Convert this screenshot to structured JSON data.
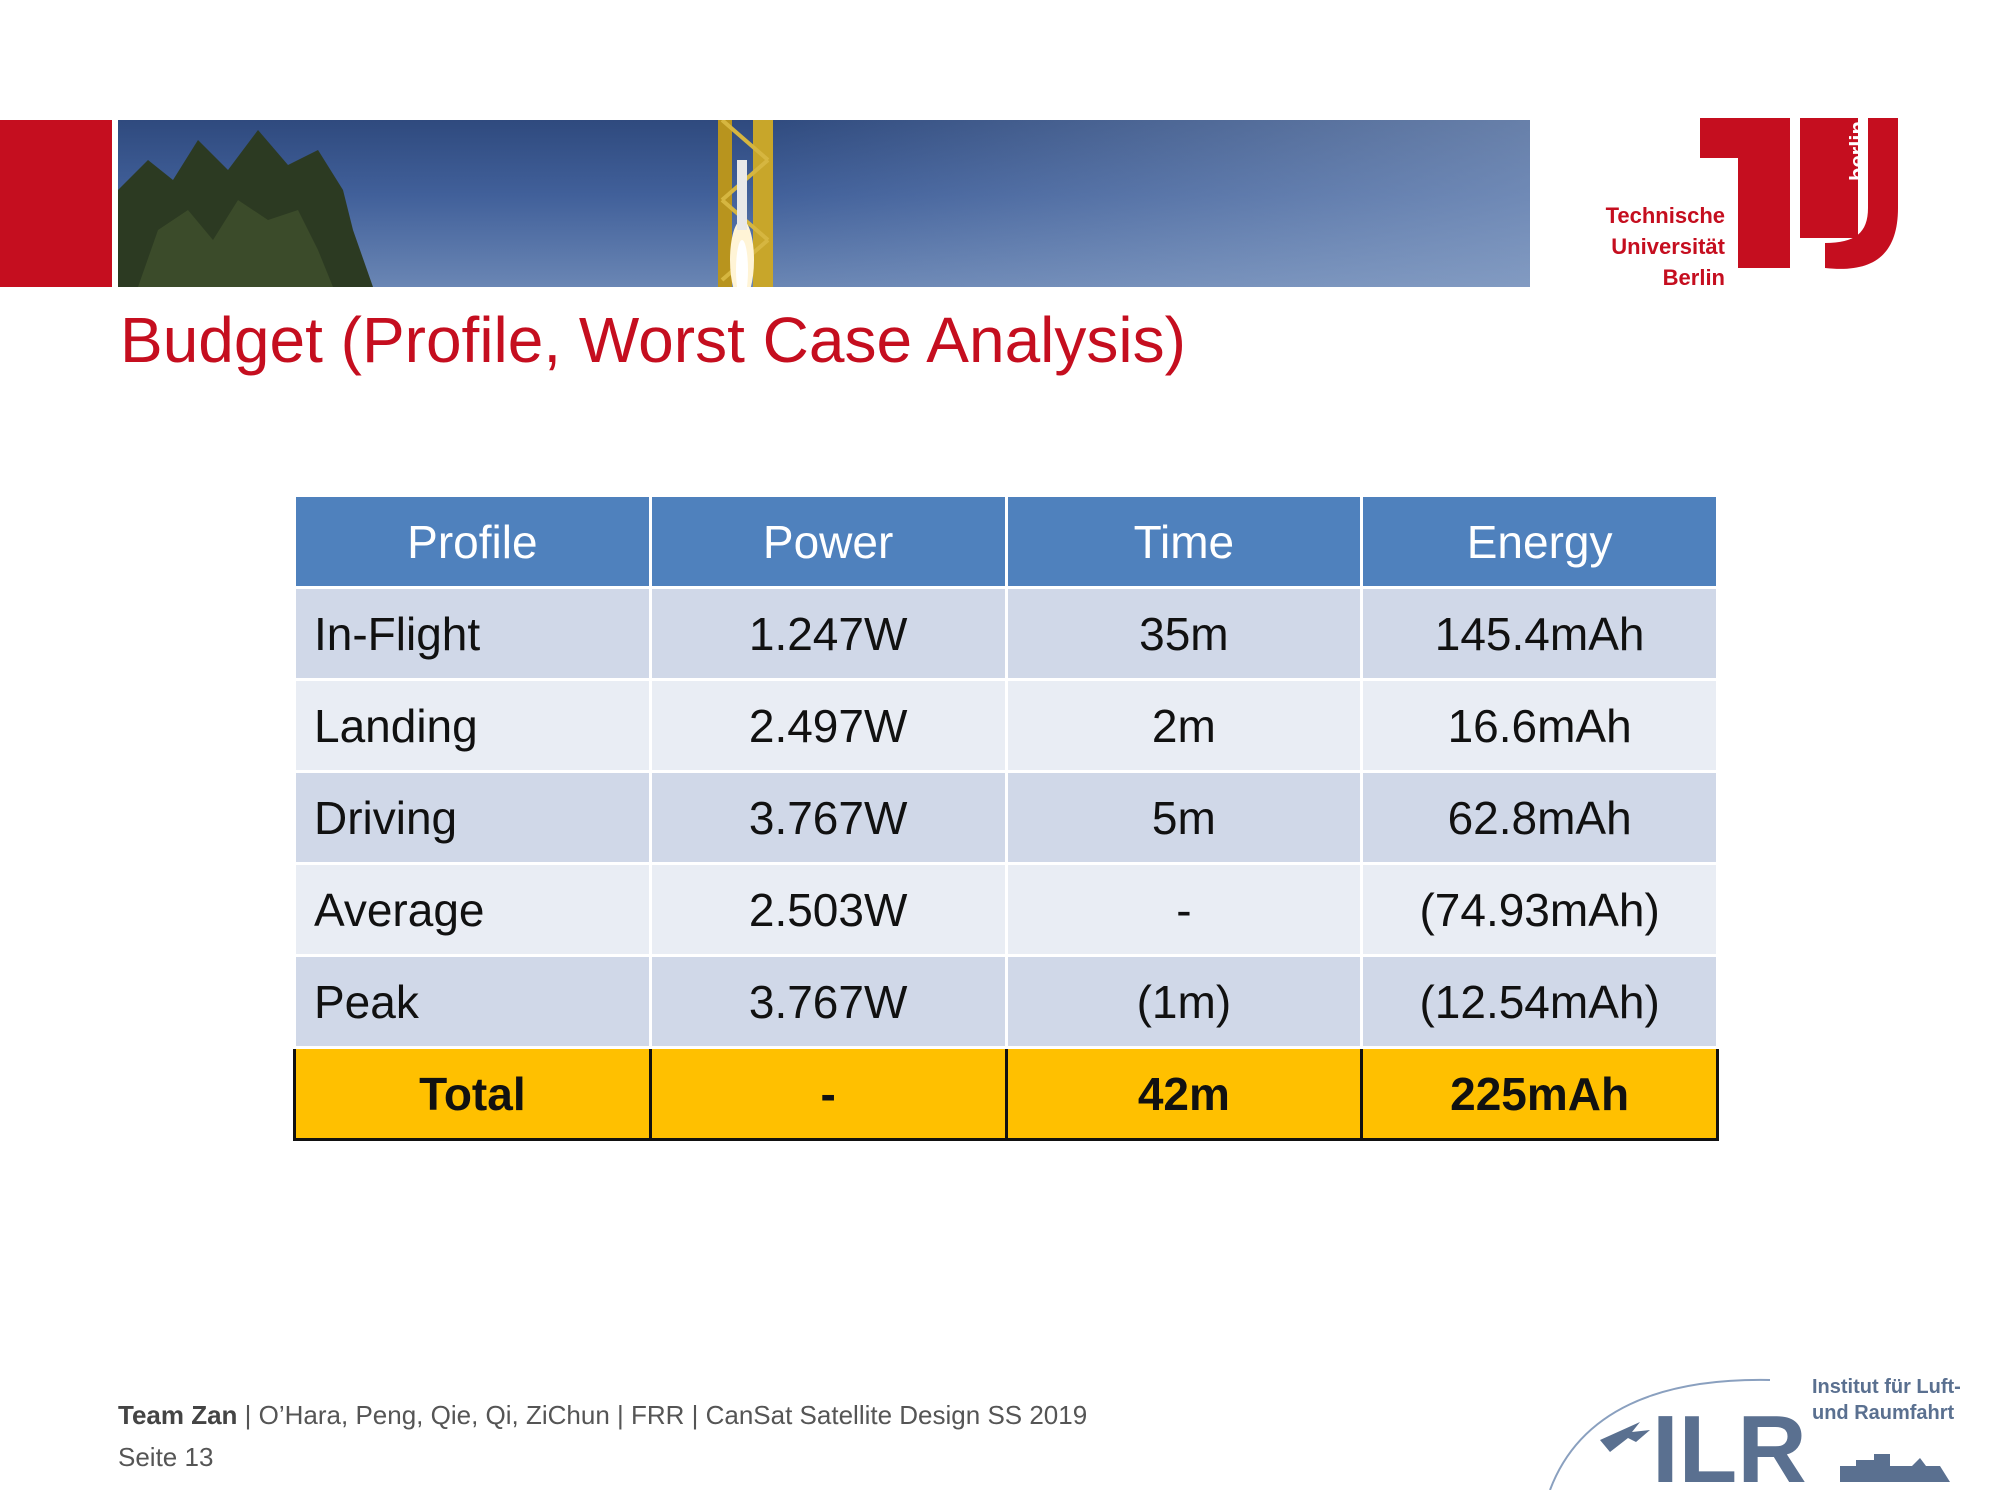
{
  "header": {
    "logo_lines": [
      "Technische",
      "Universität",
      "Berlin"
    ],
    "logo_side": "berlin"
  },
  "title": "Budget (Profile, Worst Case Analysis)",
  "table": {
    "headers": [
      "Profile",
      "Power",
      "Time",
      "Energy"
    ],
    "rows": [
      [
        "In-Flight",
        "1.247W",
        "35m",
        "145.4mAh"
      ],
      [
        "Landing",
        "2.497W",
        "2m",
        "16.6mAh"
      ],
      [
        "Driving",
        "3.767W",
        "5m",
        "62.8mAh"
      ],
      [
        "Average",
        "2.503W",
        "-",
        "(74.93mAh)"
      ],
      [
        "Peak",
        "3.767W",
        "(1m)",
        "(12.54mAh)"
      ]
    ],
    "total": [
      "Total",
      "-",
      "42m",
      "225mAh"
    ]
  },
  "footer": {
    "team": "Team Zan",
    "details": " | O’Hara, Peng, Qie, Qi, ZiChun | FRR | CanSat Satellite Design SS 2019",
    "page": "Seite 13"
  },
  "ilr": {
    "letters": "ILR",
    "line1": "Institut für Luft-",
    "line2": "und Raumfahrt"
  },
  "colors": {
    "brand_red": "#c50e1f",
    "header_blue": "#4f81bd",
    "row_dark": "#d0d8e8",
    "row_light": "#e9edf4",
    "total_yellow": "#ffc000"
  }
}
